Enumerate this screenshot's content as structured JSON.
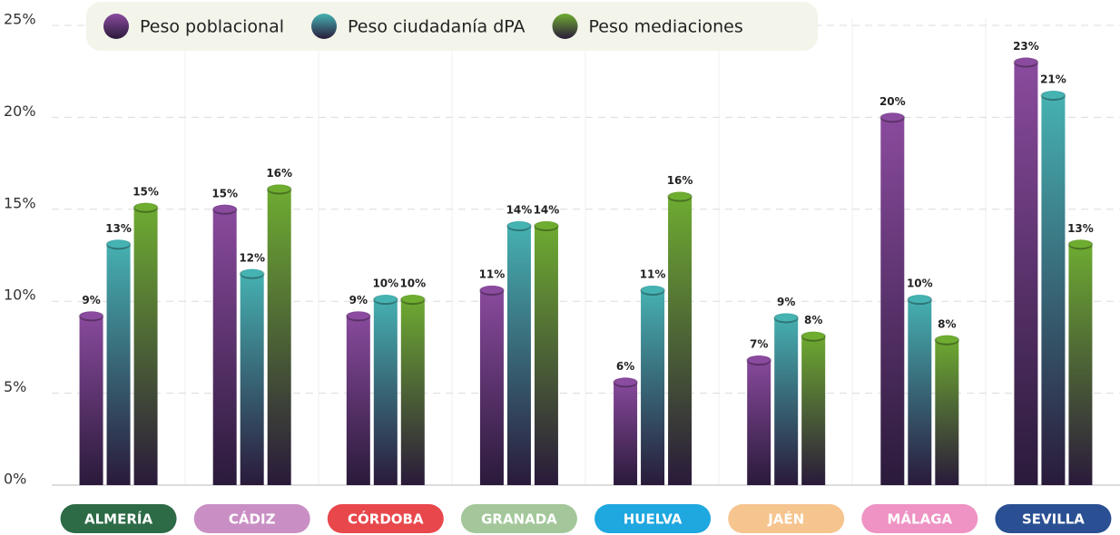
{
  "chart_data": {
    "type": "bar",
    "categories": [
      "ALMERÍA",
      "CÁDIZ",
      "CÓRDOBA",
      "GRANADA",
      "HUELVA",
      "JAÉN",
      "MÁLAGA",
      "SEVILLA"
    ],
    "category_colors": [
      "#2d6a46",
      "#c98fc4",
      "#e8474c",
      "#a3c79a",
      "#1fa7df",
      "#f6c48e",
      "#ee93c3",
      "#2a4f93"
    ],
    "series": [
      {
        "name": "Peso poblacional",
        "color": "#8b4b9f",
        "values": [
          9.2,
          15.0,
          9.2,
          10.6,
          5.6,
          6.8,
          20.0,
          23.0
        ],
        "value_labels": [
          "9%",
          "15%",
          "9%",
          "11%",
          "6%",
          "7%",
          "20%",
          "23%"
        ]
      },
      {
        "name": "Peso ciudadanía dPA",
        "color": "#46b3b3",
        "values": [
          13.1,
          11.5,
          10.1,
          14.1,
          10.6,
          9.1,
          10.1,
          21.2
        ],
        "value_labels": [
          "13%",
          "12%",
          "10%",
          "14%",
          "11%",
          "9%",
          "10%",
          "21%"
        ]
      },
      {
        "name": "Peso mediaciones",
        "color": "#6fad31",
        "values": [
          15.1,
          16.1,
          10.1,
          14.1,
          15.7,
          8.1,
          7.9,
          13.1
        ],
        "value_labels": [
          "15%",
          "16%",
          "10%",
          "14%",
          "16%",
          "8%",
          "8%",
          "13%"
        ]
      }
    ],
    "ylim": [
      0,
      25
    ],
    "yticks": [
      {
        "value": 0,
        "label": "0%"
      },
      {
        "value": 5,
        "label": "5%"
      },
      {
        "value": 10,
        "label": "10%"
      },
      {
        "value": 15,
        "label": "15%"
      },
      {
        "value": 20,
        "label": "20%"
      },
      {
        "value": 25,
        "label": "25%"
      }
    ],
    "grid": true,
    "legend": "top"
  }
}
